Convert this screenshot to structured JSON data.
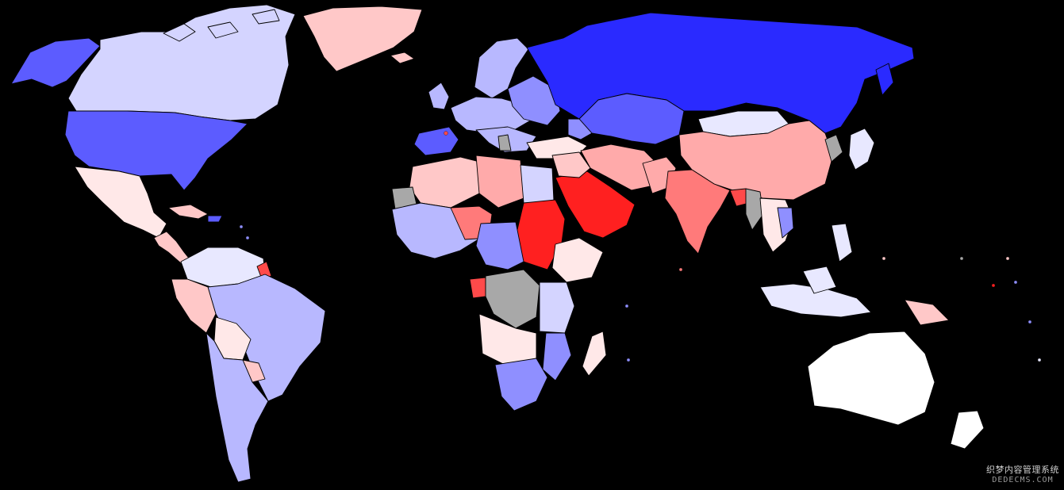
{
  "map": {
    "projection": "world-choropleth",
    "background": "#000000",
    "border_color": "#000000",
    "palette": {
      "blue_deep": "#2a2aff",
      "blue_strong": "#5c5cff",
      "blue_medium": "#8f8fff",
      "blue_soft": "#b8b8ff",
      "blue_pale": "#d4d4ff",
      "blue_faint": "#e8e8ff",
      "neutral": "#ffffff",
      "red_faint": "#ffe8e8",
      "red_pale": "#ffc8c8",
      "red_soft": "#ffaaaa",
      "red_medium": "#ff7a7a",
      "red_strong": "#ff4a4a",
      "red_deep": "#ff2020",
      "no_data": "#a8a8a8"
    }
  },
  "watermark": {
    "line1": "织梦内容管理系统",
    "line2": "DEDECMS.COM"
  }
}
